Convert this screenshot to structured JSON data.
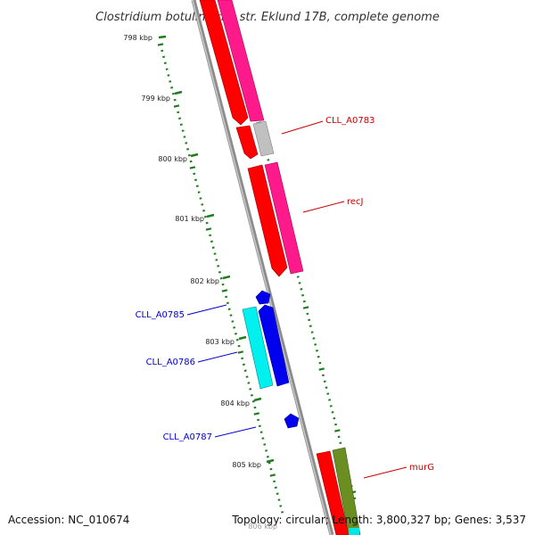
{
  "title": "Clostridium botulinum B str. Eklund 17B, complete genome",
  "accession_label": "Accession: NC_010674",
  "topology_label": "Topology: circular; Length: 3,800,327 bp; Genes: 3,537",
  "colors": {
    "backbone": "#8c8c8c",
    "ticks": "#1e7d1e",
    "forward_label": "#cc0000",
    "reverse_label": "#0000cc",
    "cds_red": "#ff0000",
    "cds_pink": "#ff1a8c",
    "cds_gray": "#bfbfbf",
    "cds_cyan": "#00f0f0",
    "cds_blue": "#0000ee",
    "cds_olive": "#6b8e23"
  },
  "kbp_markers": [
    "798 kbp",
    "799 kbp",
    "800 kbp",
    "801 kbp",
    "802 kbp",
    "803 kbp",
    "804 kbp",
    "805 kbp",
    "806 kbp"
  ],
  "gene_labels": {
    "cll_a0783": "CLL_A0783",
    "recj": "recJ",
    "cll_a0785": "CLL_A0785",
    "cll_a0786": "CLL_A0786",
    "cll_a0787": "CLL_A0787",
    "murg": "murG"
  }
}
